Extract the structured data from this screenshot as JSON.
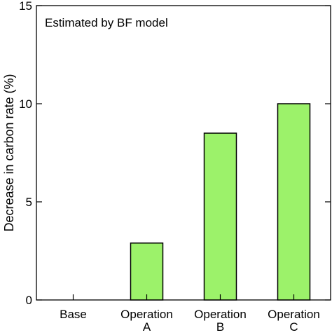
{
  "chart_data": {
    "type": "bar",
    "categories": [
      "Base",
      "Operation\nA",
      "Operation\nB",
      "Operation\nC"
    ],
    "values": [
      0,
      2.9,
      8.5,
      10.0
    ],
    "title": "",
    "annotation": "Estimated by BF model",
    "xlabel": "",
    "ylabel": "Decrease in carbon rate (%)",
    "ylim": [
      0,
      15
    ],
    "yticks": [
      0,
      5,
      10,
      15
    ],
    "bar_color": "#9cf26a",
    "bar_edge_color": "#000000",
    "grid": false,
    "legend": "none"
  }
}
